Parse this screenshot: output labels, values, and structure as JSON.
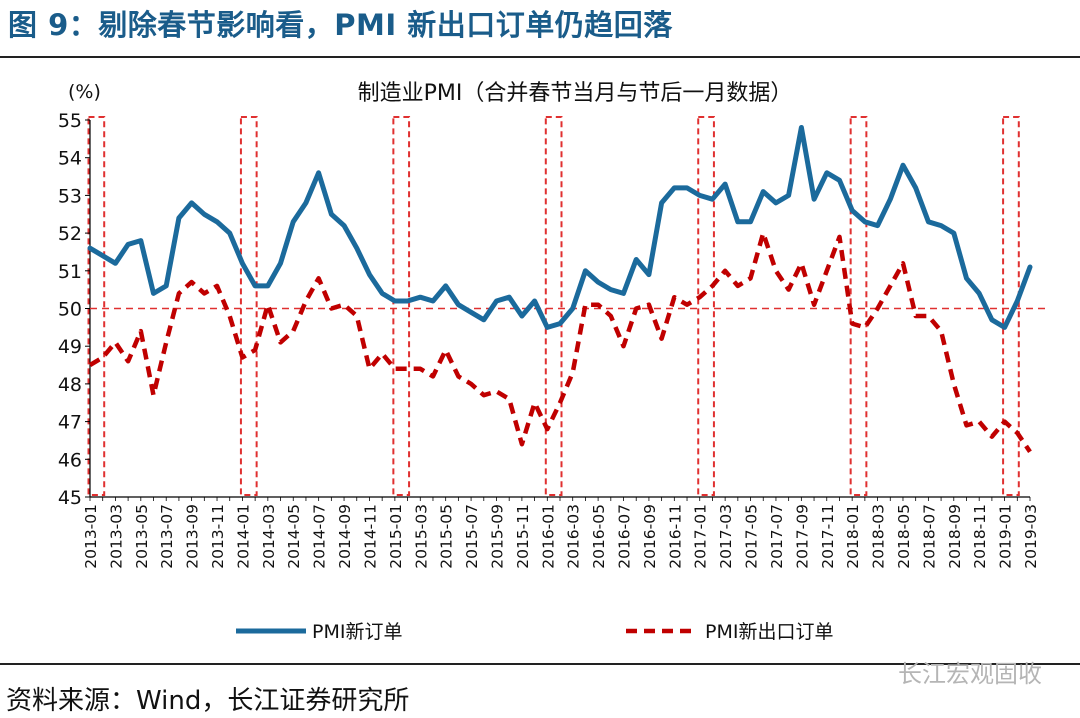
{
  "figure_title": "图 9：剔除春节影响看，PMI 新出口订单仍趋回落",
  "source_note": "资料来源：Wind，长江证券研究所",
  "watermark": "长江宏观固收",
  "colors": {
    "new_orders": "#1b6a9c",
    "export_orders": "#c00000",
    "highlight": "#e03030",
    "title": "#1a5c8a"
  },
  "chart_data": {
    "type": "line",
    "title": "制造业PMI（合并春节当月与节后一月数据）",
    "unit_label": "(%)",
    "xlabel": "",
    "ylabel": "",
    "ylim": [
      45,
      55
    ],
    "yticks": [
      45,
      46,
      47,
      48,
      49,
      50,
      51,
      52,
      53,
      54,
      55
    ],
    "grid": false,
    "legend_position": "bottom",
    "reference_line": 50,
    "x": [
      "2013-01",
      "2013-02",
      "2013-03",
      "2013-04",
      "2013-05",
      "2013-06",
      "2013-07",
      "2013-08",
      "2013-09",
      "2013-10",
      "2013-11",
      "2013-12",
      "2014-01",
      "2014-02",
      "2014-03",
      "2014-04",
      "2014-05",
      "2014-06",
      "2014-07",
      "2014-08",
      "2014-09",
      "2014-10",
      "2014-11",
      "2014-12",
      "2015-01",
      "2015-02",
      "2015-03",
      "2015-04",
      "2015-05",
      "2015-06",
      "2015-07",
      "2015-08",
      "2015-09",
      "2015-10",
      "2015-11",
      "2015-12",
      "2016-01",
      "2016-02",
      "2016-03",
      "2016-04",
      "2016-05",
      "2016-06",
      "2016-07",
      "2016-08",
      "2016-09",
      "2016-10",
      "2016-11",
      "2016-12",
      "2017-01",
      "2017-02",
      "2017-03",
      "2017-04",
      "2017-05",
      "2017-06",
      "2017-07",
      "2017-08",
      "2017-09",
      "2017-10",
      "2017-11",
      "2017-12",
      "2018-01",
      "2018-02",
      "2018-03",
      "2018-04",
      "2018-05",
      "2018-06",
      "2018-07",
      "2018-08",
      "2018-09",
      "2018-10",
      "2018-11",
      "2018-12",
      "2019-01",
      "2019-02",
      "2019-03"
    ],
    "x_tick_labels": [
      "2013-01",
      "2013-03",
      "2013-05",
      "2013-07",
      "2013-09",
      "2013-11",
      "2014-01",
      "2014-03",
      "2014-05",
      "2014-07",
      "2014-09",
      "2014-11",
      "2015-01",
      "2015-03",
      "2015-05",
      "2015-07",
      "2015-09",
      "2015-11",
      "2016-01",
      "2016-03",
      "2016-05",
      "2016-07",
      "2016-09",
      "2016-11",
      "2017-01",
      "2017-03",
      "2017-05",
      "2017-07",
      "2017-09",
      "2017-11",
      "2018-01",
      "2018-03",
      "2018-05",
      "2018-07",
      "2018-09",
      "2018-11",
      "2019-01",
      "2019-03"
    ],
    "highlight_periods": [
      [
        "2013-01",
        "2013-02"
      ],
      [
        "2014-01",
        "2014-02"
      ],
      [
        "2015-01",
        "2015-02"
      ],
      [
        "2016-01",
        "2016-02"
      ],
      [
        "2017-01",
        "2017-02"
      ],
      [
        "2018-01",
        "2018-02"
      ],
      [
        "2019-01",
        "2019-02"
      ]
    ],
    "series": [
      {
        "name": "PMI新订单",
        "style": "solid",
        "values": [
          51.6,
          51.4,
          51.2,
          51.7,
          51.8,
          50.4,
          50.6,
          52.4,
          52.8,
          52.5,
          52.3,
          52.0,
          51.2,
          50.6,
          50.6,
          51.2,
          52.3,
          52.8,
          53.6,
          52.5,
          52.2,
          51.6,
          50.9,
          50.4,
          50.2,
          50.2,
          50.3,
          50.2,
          50.6,
          50.1,
          49.9,
          49.7,
          50.2,
          50.3,
          49.8,
          50.2,
          49.5,
          49.6,
          50.0,
          51.0,
          50.7,
          50.5,
          50.4,
          51.3,
          50.9,
          52.8,
          53.2,
          53.2,
          53.0,
          52.9,
          53.3,
          52.3,
          52.3,
          53.1,
          52.8,
          53.0,
          54.8,
          52.9,
          53.6,
          53.4,
          52.6,
          52.3,
          52.2,
          52.9,
          53.8,
          53.2,
          52.3,
          52.2,
          52.0,
          50.8,
          50.4,
          49.7,
          49.5,
          50.2,
          51.1
        ]
      },
      {
        "name": "PMI新出口订单",
        "style": "dashed",
        "values": [
          48.5,
          48.7,
          49.1,
          48.6,
          49.4,
          47.7,
          49.1,
          50.4,
          50.7,
          50.4,
          50.6,
          49.8,
          48.7,
          48.9,
          50.1,
          49.1,
          49.4,
          50.2,
          50.8,
          50.0,
          50.1,
          49.8,
          48.4,
          48.8,
          48.4,
          48.4,
          48.4,
          48.2,
          48.9,
          48.2,
          48.0,
          47.7,
          47.8,
          47.6,
          46.4,
          47.5,
          46.8,
          47.5,
          48.3,
          50.1,
          50.1,
          49.8,
          49.0,
          50.0,
          50.1,
          49.2,
          50.3,
          50.1,
          50.3,
          50.6,
          51.0,
          50.6,
          50.8,
          52.0,
          51.0,
          50.5,
          51.2,
          50.1,
          51.0,
          51.9,
          49.6,
          49.5,
          50.0,
          50.6,
          51.2,
          49.8,
          49.8,
          49.4,
          48.0,
          46.9,
          47.0,
          46.6,
          47.0,
          46.7,
          46.2
        ]
      }
    ]
  }
}
